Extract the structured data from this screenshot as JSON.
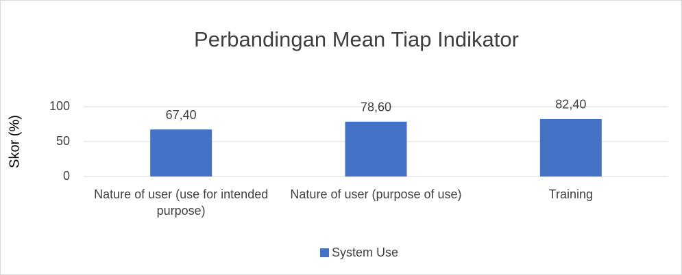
{
  "chart_data": {
    "type": "bar",
    "title": "Perbandingan Mean Tiap Indikator",
    "y_label": "Skor (%)",
    "categories": [
      "Nature of user (use for intended purpose)",
      "Nature of user (purpose of use)",
      "Training"
    ],
    "series": [
      {
        "name": "System Use",
        "color": "#4472c4",
        "values": [
          67.4,
          78.6,
          82.4
        ],
        "value_labels": [
          "67,40",
          "78,60",
          "82,40"
        ]
      }
    ],
    "ylim": [
      0,
      100
    ],
    "yticks": [
      0,
      50,
      100
    ],
    "grid": true,
    "legend": "bottom"
  }
}
